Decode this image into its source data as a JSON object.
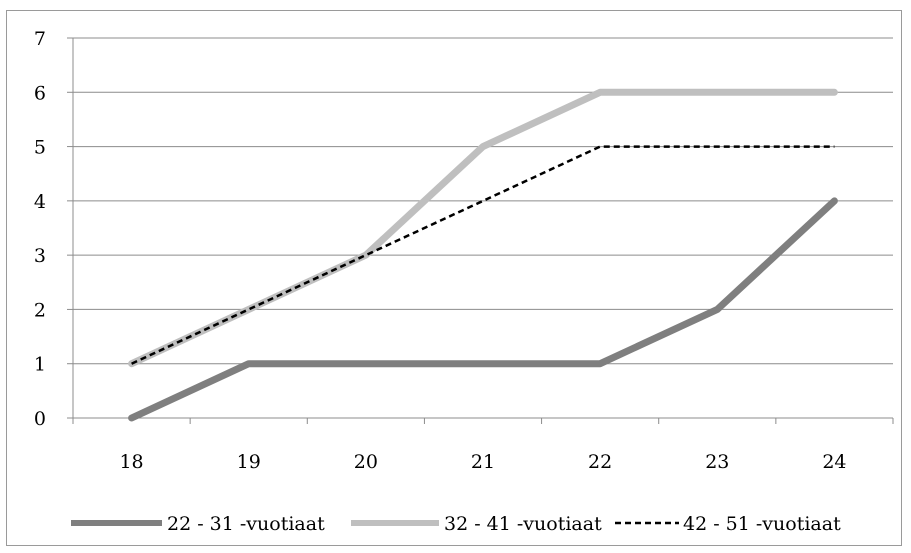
{
  "chart_data": {
    "type": "line",
    "title": "",
    "xlabel": "",
    "ylabel": "",
    "x": [
      "18",
      "19",
      "20",
      "21",
      "22",
      "23",
      "24"
    ],
    "ylim": [
      0,
      7
    ],
    "yticks": [
      0,
      1,
      2,
      3,
      4,
      5,
      6,
      7
    ],
    "grid": true,
    "legend_position": "bottom",
    "series": [
      {
        "name": "22 - 31 -vuotiaat",
        "values": [
          0,
          1,
          1,
          1,
          1,
          2,
          4
        ],
        "color": "#7f7f7f",
        "style": "solid"
      },
      {
        "name": "32 - 41 -vuotiaat",
        "values": [
          1,
          2,
          3,
          5,
          6,
          6,
          6
        ],
        "color": "#bfbfbf",
        "style": "solid"
      },
      {
        "name": "42 - 51 -vuotiaat",
        "values": [
          1,
          2,
          3,
          4,
          5,
          5,
          5
        ],
        "color": "#000000",
        "style": "dashed"
      }
    ]
  }
}
